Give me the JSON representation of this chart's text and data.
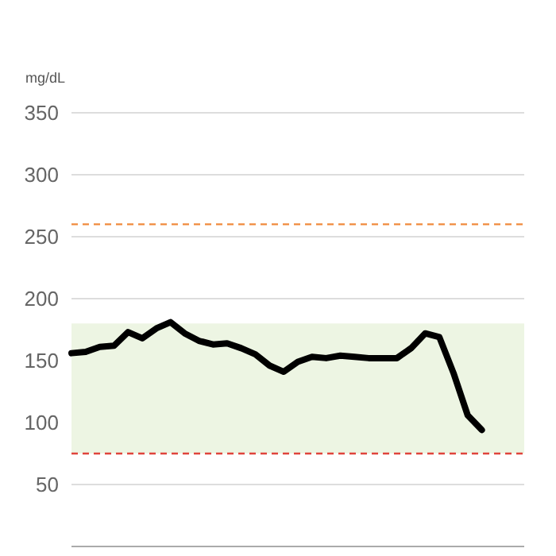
{
  "chart_data": {
    "type": "line",
    "ylabel": "mg/dL",
    "categories": [
      null,
      null,
      null,
      null,
      null,
      null,
      null,
      null,
      null,
      null,
      null,
      null,
      null,
      null,
      null,
      null,
      null,
      null,
      null,
      null,
      null,
      null,
      null,
      null,
      null,
      null,
      null,
      null,
      null,
      null,
      null,
      null,
      null
    ],
    "series": [
      {
        "color": "#000000",
        "values": [
          156,
          157,
          161,
          162,
          173,
          168,
          176,
          181,
          172,
          166,
          163,
          164,
          160,
          155,
          146,
          141,
          149,
          153,
          152,
          154,
          153,
          152,
          152,
          152,
          160,
          172,
          169,
          140,
          106,
          94,
          null,
          null,
          null
        ]
      }
    ],
    "ylim": [
      0,
      350
    ],
    "yticks": [
      50,
      100,
      150,
      200,
      250,
      300,
      350
    ],
    "grid": "y",
    "tick_labels": "y",
    "marker": "none",
    "line_style": "solid",
    "ref_lines": [
      {
        "axis": "y",
        "value": 260,
        "color": "#f08a3c",
        "line_style": "dashed"
      },
      {
        "axis": "y",
        "value": 75,
        "color": "#e0443c",
        "line_style": "dashed"
      }
    ],
    "bands": [
      {
        "axis": "y",
        "from": 75,
        "to": 180,
        "color": "#edf5e3"
      }
    ]
  }
}
